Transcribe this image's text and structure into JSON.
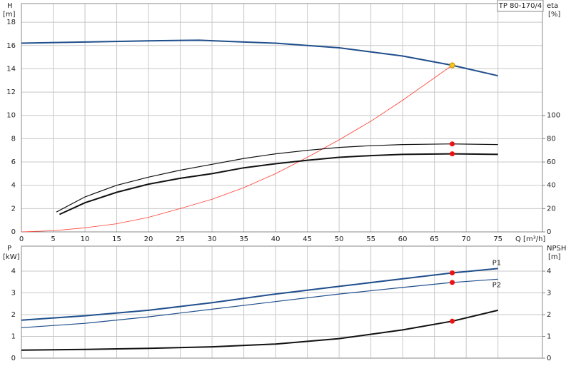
{
  "chart_data": [
    {
      "type": "line",
      "title": "TP 80-170/4",
      "ylabel": "H",
      "yunit": "[m]",
      "y2label": "eta",
      "y2unit": "[%]",
      "xlabel": "Q [m³/h]",
      "xlim": [
        0,
        82
      ],
      "xticks": [
        0,
        5,
        10,
        15,
        20,
        25,
        30,
        35,
        40,
        45,
        50,
        55,
        60,
        65,
        70,
        75
      ],
      "show_xtick_labels": true,
      "ylim": [
        0,
        19.6
      ],
      "yticks": [
        0,
        2,
        4,
        6,
        8,
        10,
        12,
        14,
        16,
        18
      ],
      "y2lim": [
        0,
        196
      ],
      "y2ticks": [
        0,
        20,
        40,
        60,
        80,
        100
      ],
      "grid": true,
      "series": [
        {
          "style": "line",
          "color": "#1f4e8c",
          "width": 2,
          "x": [
            0,
            10,
            20,
            28,
            35,
            40,
            50,
            60,
            67.8,
            75
          ],
          "values": [
            16.2,
            16.3,
            16.4,
            16.45,
            16.3,
            16.2,
            15.8,
            15.1,
            14.3,
            13.4
          ]
        },
        {
          "style": "line",
          "color": "#ff3b2f",
          "width": 0.8,
          "x": [
            0,
            5,
            10,
            15,
            20,
            25,
            30,
            35,
            40,
            45,
            50,
            55,
            60,
            67.8
          ],
          "values": [
            0,
            0.1,
            0.35,
            0.7,
            1.25,
            2.0,
            2.8,
            3.8,
            5.0,
            6.4,
            7.9,
            9.5,
            11.3,
            14.3
          ]
        },
        {
          "style": "line",
          "color": "#111111",
          "width": 1.2,
          "axis": "y2",
          "x": [
            5.5,
            10,
            15,
            20,
            25,
            30,
            35,
            40,
            45,
            50,
            55,
            60,
            67.8,
            75
          ],
          "values": [
            17,
            30,
            40,
            47,
            53,
            58,
            63,
            67,
            70,
            72.5,
            74,
            75,
            75.5,
            75
          ]
        },
        {
          "style": "line",
          "color": "#111111",
          "width": 2,
          "axis": "y2",
          "x": [
            6,
            10,
            15,
            20,
            25,
            30,
            35,
            40,
            45,
            50,
            55,
            60,
            67.8,
            75
          ],
          "values": [
            15,
            25,
            34,
            41,
            46,
            50,
            55,
            58.5,
            61.5,
            64,
            65.5,
            66.5,
            67,
            66.5
          ]
        },
        {
          "style": "points",
          "color": "#ee1111",
          "axis": "y2",
          "x": [
            67.8,
            67.8
          ],
          "values": [
            75.5,
            67
          ]
        },
        {
          "style": "points",
          "color": "#f5c518",
          "x": [
            67.8
          ],
          "values": [
            14.3
          ]
        }
      ]
    },
    {
      "type": "line",
      "ylabel": "P",
      "yunit": "[kW]",
      "y2label": "NPSH",
      "y2unit": "[m]",
      "xlim": [
        0,
        82
      ],
      "xticks": [
        0,
        5,
        10,
        15,
        20,
        25,
        30,
        35,
        40,
        45,
        50,
        55,
        60,
        65,
        70,
        75
      ],
      "show_xtick_labels": false,
      "ylim": [
        0,
        5.15
      ],
      "yticks": [
        0,
        1,
        2,
        3,
        4
      ],
      "y2lim": [
        0,
        5.15
      ],
      "y2ticks": [
        0,
        1,
        2,
        3,
        4
      ],
      "grid": true,
      "series": [
        {
          "name": "P1",
          "style": "line",
          "color": "#1f4e8c",
          "width": 2,
          "x": [
            0,
            10,
            20,
            30,
            40,
            50,
            60,
            67.8,
            75
          ],
          "values": [
            1.75,
            1.95,
            2.2,
            2.55,
            2.95,
            3.3,
            3.65,
            3.92,
            4.12
          ]
        },
        {
          "name": "P2",
          "style": "line",
          "color": "#1f4e8c",
          "width": 1.2,
          "x": [
            0,
            10,
            20,
            30,
            40,
            50,
            60,
            67.8,
            75
          ],
          "values": [
            1.4,
            1.6,
            1.9,
            2.25,
            2.6,
            2.95,
            3.25,
            3.48,
            3.63
          ]
        },
        {
          "style": "line",
          "color": "#111111",
          "width": 2,
          "axis": "y2",
          "x": [
            0,
            10,
            20,
            30,
            40,
            50,
            60,
            67.8,
            75
          ],
          "values": [
            0.37,
            0.4,
            0.45,
            0.52,
            0.65,
            0.9,
            1.3,
            1.7,
            2.2
          ]
        },
        {
          "style": "points",
          "color": "#ee1111",
          "x": [
            67.8,
            67.8
          ],
          "values": [
            3.92,
            3.48
          ]
        },
        {
          "style": "points",
          "color": "#ee1111",
          "axis": "y2",
          "x": [
            67.8
          ],
          "values": [
            1.7
          ]
        }
      ]
    }
  ]
}
